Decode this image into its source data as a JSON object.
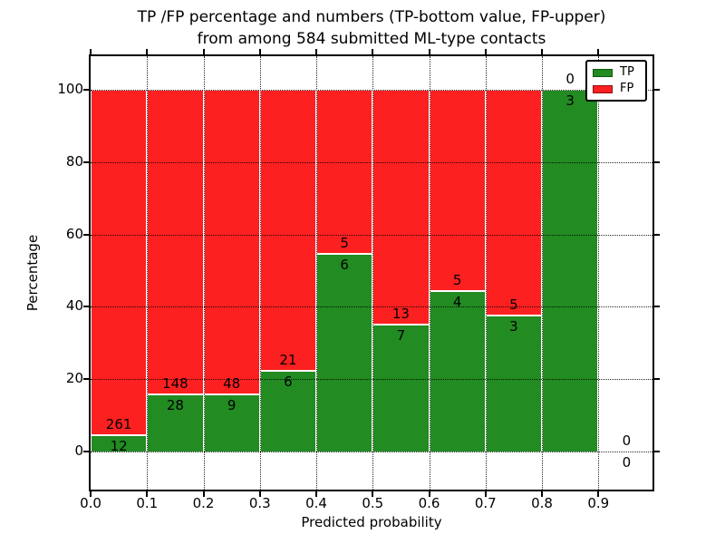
{
  "title": {
    "line1": "TP /FP percentage and numbers (TP-bottom value, FP-upper)",
    "line2": "from among 584 submitted ML-type contacts"
  },
  "axes": {
    "xlabel": "Predicted probability",
    "ylabel": "Percentage",
    "x_tick_labels": [
      "0.0",
      "0.1",
      "0.2",
      "0.3",
      "0.4",
      "0.5",
      "0.6",
      "0.7",
      "0.8",
      "0.9"
    ],
    "y_tick_labels": [
      "0",
      "20",
      "40",
      "60",
      "80",
      "100"
    ],
    "y_tick_values": [
      0,
      20,
      40,
      60,
      80,
      100
    ],
    "grid": "dotted"
  },
  "legend": {
    "position": "upper right",
    "items": [
      {
        "label": "TP",
        "color": "#228b22",
        "edge": "#0e5a0e"
      },
      {
        "label": "FP",
        "color": "#fd2020",
        "edge": "#8f1010"
      }
    ]
  },
  "colors": {
    "tp_green": "#228b22",
    "fp_red": "#fd2020",
    "bar_edge": "#ffffff",
    "grid": "#000000"
  },
  "chart_data": {
    "type": "bar",
    "stacked": true,
    "normalized_to_percent": true,
    "title": "TP /FP percentage and numbers (TP-bottom value, FP-upper) from among 584 submitted ML-type contacts",
    "xlabel": "Predicted probability",
    "ylabel": "Percentage",
    "bin_edges": [
      0.0,
      0.1,
      0.2,
      0.3,
      0.4,
      0.5,
      0.6,
      0.7,
      0.8,
      0.9,
      1.0
    ],
    "categories": [
      "0.0-0.1",
      "0.1-0.2",
      "0.2-0.3",
      "0.3-0.4",
      "0.4-0.5",
      "0.5-0.6",
      "0.6-0.7",
      "0.7-0.8",
      "0.8-0.9",
      "0.9-1.0"
    ],
    "series": [
      {
        "name": "TP",
        "color": "#228b22",
        "edge": "#0e5a0e",
        "values": [
          12,
          28,
          9,
          6,
          6,
          7,
          4,
          3,
          3,
          0
        ]
      },
      {
        "name": "FP",
        "color": "#fd2020",
        "edge": "#8f1010",
        "values": [
          261,
          148,
          48,
          21,
          5,
          13,
          5,
          5,
          0,
          0
        ]
      }
    ],
    "tp_percent_of_bin": [
      4.4,
      15.91,
      15.79,
      22.22,
      54.55,
      35.0,
      44.44,
      37.5,
      100.0,
      0.0
    ],
    "total_contacts": 584,
    "annotation_rule": "FP count above boundary, TP count below boundary",
    "xlim": [
      0.0,
      1.0
    ],
    "ylim": [
      -10.5,
      109.5
    ],
    "legend_position": "upper right",
    "grid": true
  }
}
